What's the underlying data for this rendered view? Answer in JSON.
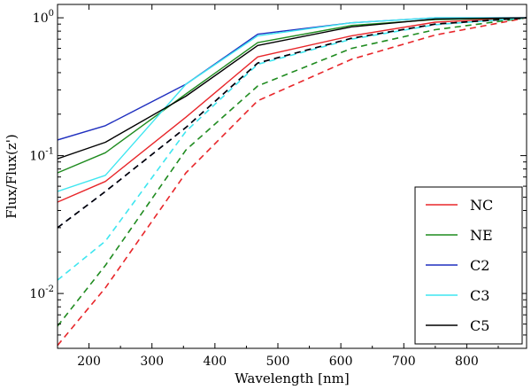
{
  "chart_data": {
    "type": "line",
    "xlabel": "Wavelength [nm]",
    "ylabel": "Flux/Flux(z')",
    "xlim": [
      150,
      895
    ],
    "ylim": [
      0.004,
      1.25
    ],
    "yscale": "log",
    "xticks": [
      200,
      300,
      400,
      500,
      600,
      700,
      800
    ],
    "xtick_labels": [
      "200",
      "300",
      "400",
      "500",
      "600",
      "700",
      "800"
    ],
    "yticks": [
      {
        "value": 0.01,
        "base": "10",
        "exp": "-2"
      },
      {
        "value": 0.1,
        "base": "10",
        "exp": "-1"
      },
      {
        "value": 1,
        "base": "10",
        "exp": "0"
      }
    ],
    "legend_position": "lower-right",
    "x": [
      150,
      226,
      354,
      468,
      617,
      750,
      895
    ],
    "series": [
      {
        "name": "NC",
        "color": "#e8262a",
        "style": "solid",
        "values": [
          0.046,
          0.065,
          0.19,
          0.52,
          0.74,
          0.93,
          1.0
        ]
      },
      {
        "name": "NC",
        "color": "#e8262a",
        "style": "dashed",
        "legend": false,
        "values": [
          0.0042,
          0.011,
          0.075,
          0.25,
          0.5,
          0.75,
          1.0
        ]
      },
      {
        "name": "NE",
        "color": "#1f8b1f",
        "style": "solid",
        "values": [
          0.075,
          0.105,
          0.28,
          0.66,
          0.88,
          0.97,
          1.0
        ]
      },
      {
        "name": "NE",
        "color": "#1f8b1f",
        "style": "dashed",
        "legend": false,
        "values": [
          0.0058,
          0.016,
          0.11,
          0.32,
          0.6,
          0.82,
          1.0
        ]
      },
      {
        "name": "C2",
        "color": "#1f2fbf",
        "style": "solid",
        "values": [
          0.13,
          0.165,
          0.33,
          0.76,
          0.92,
          1.0,
          1.0
        ]
      },
      {
        "name": "C2",
        "color": "#1f2fbf",
        "style": "dashed",
        "legend": false,
        "values": [
          0.03,
          0.055,
          0.16,
          0.47,
          0.71,
          0.9,
          1.0
        ]
      },
      {
        "name": "C3",
        "color": "#3fe6f0",
        "style": "solid",
        "values": [
          0.055,
          0.072,
          0.33,
          0.74,
          0.92,
          1.0,
          1.0
        ]
      },
      {
        "name": "C3",
        "color": "#3fe6f0",
        "style": "dashed",
        "legend": false,
        "values": [
          0.0125,
          0.024,
          0.15,
          0.46,
          0.7,
          0.89,
          1.0
        ]
      },
      {
        "name": "C5",
        "color": "#000000",
        "style": "solid",
        "values": [
          0.095,
          0.125,
          0.27,
          0.63,
          0.86,
          0.98,
          1.0
        ]
      },
      {
        "name": "C5",
        "color": "#000000",
        "style": "dashed",
        "legend": false,
        "values": [
          0.03,
          0.055,
          0.16,
          0.47,
          0.71,
          0.9,
          1.0
        ]
      }
    ]
  }
}
